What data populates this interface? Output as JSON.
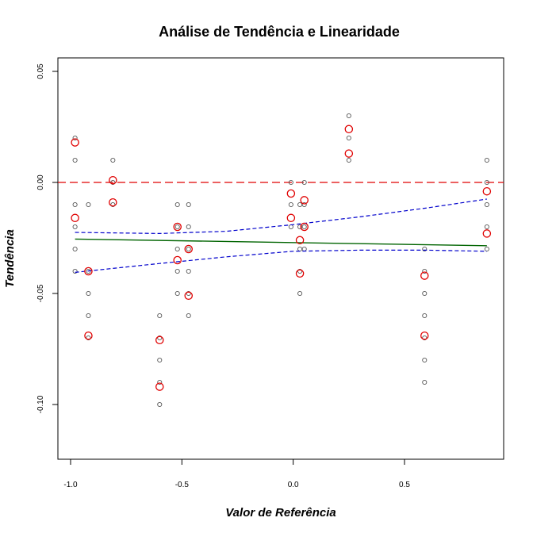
{
  "chart_data": {
    "type": "scatter",
    "title": "Análise de Tendência e Linearidade",
    "xlabel": "Valor de Referência",
    "ylabel": "Tendência",
    "xlim": [
      -1.0,
      0.9
    ],
    "ylim": [
      -0.125,
      0.057
    ],
    "x_ticks": [
      -1.0,
      -0.5,
      0.0,
      0.5
    ],
    "x_tick_labels": [
      "-1.0",
      "-0.5",
      "0.0",
      "0.5"
    ],
    "y_ticks": [
      -0.1,
      -0.05,
      0.0,
      0.05
    ],
    "y_tick_labels": [
      "-0.10",
      "-0.05",
      "0.00",
      "0.05"
    ],
    "reference_line": {
      "y": 0.0,
      "color": "#e00000",
      "style": "dashed"
    },
    "individual_points": {
      "color": "#555555",
      "points": [
        [
          -0.98,
          0.02
        ],
        [
          -0.98,
          0.01
        ],
        [
          -0.98,
          -0.01
        ],
        [
          -0.98,
          -0.02
        ],
        [
          -0.98,
          -0.03
        ],
        [
          -0.98,
          -0.04
        ],
        [
          -0.92,
          -0.01
        ],
        [
          -0.92,
          -0.04
        ],
        [
          -0.92,
          -0.05
        ],
        [
          -0.92,
          -0.06
        ],
        [
          -0.92,
          -0.07
        ],
        [
          -0.81,
          0.01
        ],
        [
          -0.81,
          0.0
        ],
        [
          -0.81,
          -0.01
        ],
        [
          -0.6,
          -0.06
        ],
        [
          -0.6,
          -0.07
        ],
        [
          -0.6,
          -0.08
        ],
        [
          -0.6,
          -0.09
        ],
        [
          -0.6,
          -0.1
        ],
        [
          -0.52,
          -0.01
        ],
        [
          -0.52,
          -0.02
        ],
        [
          -0.52,
          -0.03
        ],
        [
          -0.52,
          -0.04
        ],
        [
          -0.52,
          -0.05
        ],
        [
          -0.47,
          -0.01
        ],
        [
          -0.47,
          -0.02
        ],
        [
          -0.47,
          -0.03
        ],
        [
          -0.47,
          -0.04
        ],
        [
          -0.47,
          -0.05
        ],
        [
          -0.47,
          -0.06
        ],
        [
          -0.01,
          0.0
        ],
        [
          -0.01,
          -0.01
        ],
        [
          -0.01,
          -0.02
        ],
        [
          0.03,
          -0.01
        ],
        [
          0.03,
          -0.02
        ],
        [
          0.03,
          -0.03
        ],
        [
          0.03,
          -0.04
        ],
        [
          0.03,
          -0.05
        ],
        [
          0.05,
          0.0
        ],
        [
          0.05,
          -0.01
        ],
        [
          0.05,
          -0.02
        ],
        [
          0.05,
          -0.03
        ],
        [
          0.25,
          0.03
        ],
        [
          0.25,
          0.02
        ],
        [
          0.25,
          0.01
        ],
        [
          0.59,
          -0.03
        ],
        [
          0.59,
          -0.04
        ],
        [
          0.59,
          -0.05
        ],
        [
          0.59,
          -0.06
        ],
        [
          0.59,
          -0.07
        ],
        [
          0.59,
          -0.08
        ],
        [
          0.59,
          -0.09
        ],
        [
          0.87,
          0.01
        ],
        [
          0.87,
          0.0
        ],
        [
          0.87,
          -0.01
        ],
        [
          0.87,
          -0.02
        ],
        [
          0.87,
          -0.03
        ]
      ]
    },
    "mean_points": {
      "color": "#e00000",
      "points": [
        [
          -0.98,
          0.018
        ],
        [
          -0.98,
          -0.016
        ],
        [
          -0.92,
          -0.04
        ],
        [
          -0.92,
          -0.069
        ],
        [
          -0.81,
          0.001
        ],
        [
          -0.81,
          -0.009
        ],
        [
          -0.6,
          -0.071
        ],
        [
          -0.6,
          -0.092
        ],
        [
          -0.52,
          -0.02
        ],
        [
          -0.52,
          -0.035
        ],
        [
          -0.47,
          -0.03
        ],
        [
          -0.47,
          -0.051
        ],
        [
          -0.01,
          -0.005
        ],
        [
          -0.01,
          -0.016
        ],
        [
          0.03,
          -0.026
        ],
        [
          0.03,
          -0.041
        ],
        [
          0.05,
          -0.008
        ],
        [
          0.05,
          -0.02
        ],
        [
          0.25,
          0.024
        ],
        [
          0.25,
          0.013
        ],
        [
          0.59,
          -0.042
        ],
        [
          0.59,
          -0.069
        ],
        [
          0.87,
          -0.004
        ],
        [
          0.87,
          -0.023
        ]
      ]
    },
    "regression_line": {
      "color": "#006400",
      "x": [
        -0.98,
        0.87
      ],
      "y": [
        -0.0255,
        -0.0285
      ]
    },
    "confidence_upper": {
      "color": "#0000cc",
      "x": [
        -0.98,
        -0.6,
        -0.3,
        0.0,
        0.3,
        0.6,
        0.87
      ],
      "y": [
        -0.0225,
        -0.023,
        -0.022,
        -0.019,
        -0.0155,
        -0.0115,
        -0.0075
      ]
    },
    "confidence_lower": {
      "color": "#0000cc",
      "x": [
        -0.98,
        -0.6,
        -0.3,
        0.0,
        0.3,
        0.6,
        0.87
      ],
      "y": [
        -0.0405,
        -0.0365,
        -0.0335,
        -0.031,
        -0.0305,
        -0.0305,
        -0.031
      ]
    }
  }
}
